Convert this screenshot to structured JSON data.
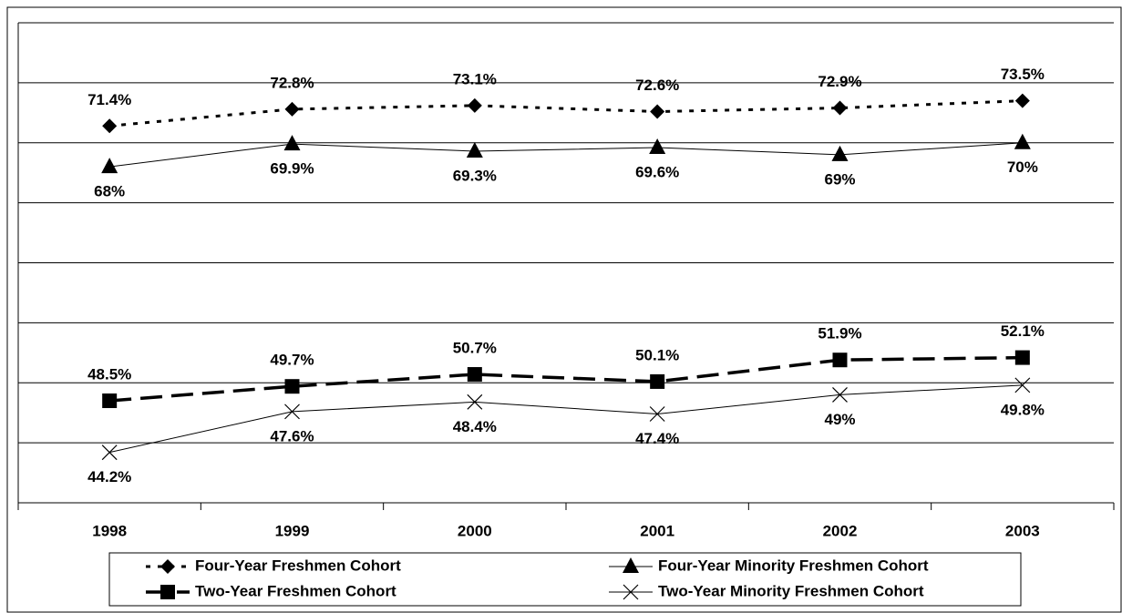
{
  "chart_data": {
    "type": "line",
    "categories": [
      "1998",
      "1999",
      "2000",
      "2001",
      "2002",
      "2003"
    ],
    "ylim": [
      40,
      80
    ],
    "yticks": [
      40,
      45,
      50,
      55,
      60,
      65,
      70,
      75,
      80
    ],
    "grid": true,
    "legend": "bottom",
    "series": [
      {
        "name": "Four-Year Freshmen Cohort",
        "color": "#000000",
        "marker": "diamond",
        "line_style": "dotted",
        "label_position": "above",
        "values": [
          71.4,
          72.8,
          73.1,
          72.6,
          72.9,
          73.5
        ],
        "value_labels": [
          "71.4%",
          "72.8%",
          "73.1%",
          "72.6%",
          "72.9%",
          "73.5%"
        ]
      },
      {
        "name": "Four-Year Minority Freshmen Cohort",
        "color": "#000000",
        "marker": "triangle",
        "line_style": "thin",
        "label_position": "below",
        "values": [
          68,
          69.9,
          69.3,
          69.6,
          69,
          70
        ],
        "value_labels": [
          "68%",
          "69.9%",
          "69.3%",
          "69.6%",
          "69%",
          "70%"
        ]
      },
      {
        "name": "Two-Year Freshmen Cohort",
        "color": "#000000",
        "marker": "square",
        "line_style": "dashed",
        "label_position": "above",
        "values": [
          48.5,
          49.7,
          50.7,
          50.1,
          51.9,
          52.1
        ],
        "value_labels": [
          "48.5%",
          "49.7%",
          "50.7%",
          "50.1%",
          "51.9%",
          "52.1%"
        ]
      },
      {
        "name": "Two-Year Minority Freshmen Cohort",
        "color": "#000000",
        "marker": "cross",
        "line_style": "thin",
        "label_position": "below",
        "values": [
          44.2,
          47.6,
          48.4,
          47.4,
          49,
          49.8
        ],
        "value_labels": [
          "44.2%",
          "47.6%",
          "48.4%",
          "47.4%",
          "49%",
          "49.8%"
        ]
      }
    ]
  }
}
